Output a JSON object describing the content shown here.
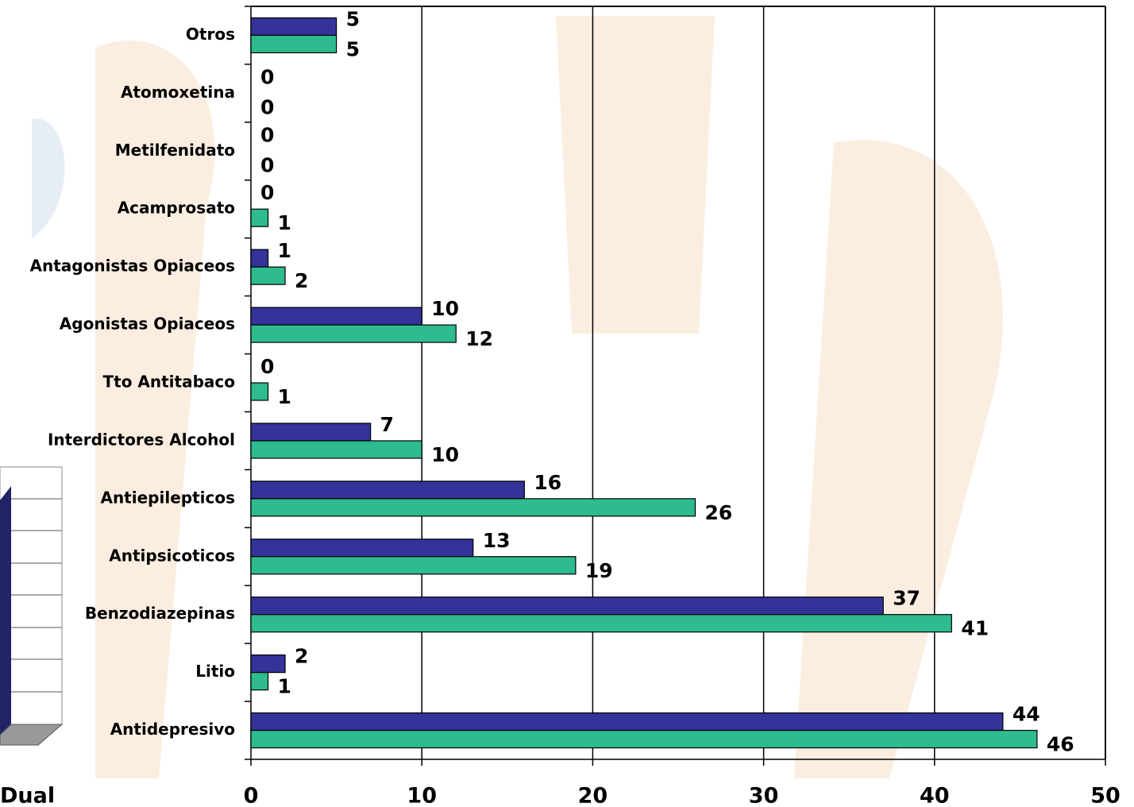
{
  "chart_data": {
    "type": "barh",
    "categories": [
      "Antidepresivo",
      "Litio",
      "Benzodiazepinas",
      "Antipsicoticos",
      "Antiepilepticos",
      "Interdictores Alcohol",
      "Tto Antitabaco",
      "Agonistas Opiaceos",
      "Antagonistas Opiaceos",
      "Acamprosato",
      "Metilfenidato",
      "Atomoxetina",
      "Otros"
    ],
    "series": [
      {
        "color": "#333399",
        "values": [
          44,
          2,
          37,
          13,
          16,
          7,
          0,
          10,
          1,
          0,
          0,
          0,
          5
        ]
      },
      {
        "color": "#2dbb8f",
        "values": [
          46,
          1,
          41,
          19,
          26,
          10,
          1,
          12,
          2,
          1,
          0,
          0,
          5
        ]
      }
    ],
    "xlim": [
      0,
      50
    ],
    "xticks": [
      0,
      10,
      20,
      30,
      40,
      50
    ],
    "grid": true
  },
  "left_fragment": {
    "label": "Dual"
  }
}
